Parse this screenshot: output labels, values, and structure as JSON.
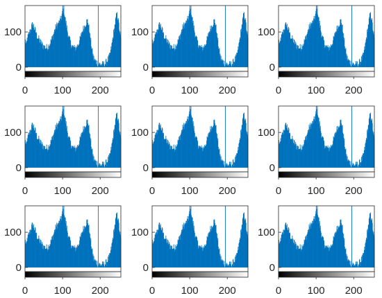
{
  "figure": {
    "grid": {
      "rows": 3,
      "cols": 3
    },
    "background": "#ffffff",
    "bar_color": "#0072BD",
    "axis_color": "#262626",
    "colorbar": "gray",
    "y_axis_range": [
      -12,
      175
    ],
    "x_axis_range": [
      0,
      255
    ],
    "y_tick_labels": [
      "0",
      "100"
    ],
    "x_tick_labels": [
      "0",
      "100",
      "200"
    ]
  },
  "chart_data": {
    "type": "bar",
    "description_of_layout": "nine identical grayscale intensity histograms",
    "xlim": [
      0,
      255
    ],
    "ylim": [
      -12,
      175
    ],
    "x_ticks": [
      0,
      100,
      200
    ],
    "y_ticks": [
      0,
      100
    ],
    "colorbar_under_axis": "black-to-white gradient",
    "bins": {
      "start": 0,
      "width": 1,
      "count": 256
    },
    "profile_points": [
      [
        0,
        75
      ],
      [
        3,
        62
      ],
      [
        5,
        80
      ],
      [
        8,
        88
      ],
      [
        10,
        95
      ],
      [
        12,
        100
      ],
      [
        15,
        110
      ],
      [
        18,
        118
      ],
      [
        20,
        122
      ],
      [
        22,
        118
      ],
      [
        25,
        108
      ],
      [
        28,
        100
      ],
      [
        30,
        92
      ],
      [
        33,
        85
      ],
      [
        36,
        80
      ],
      [
        40,
        72
      ],
      [
        43,
        68
      ],
      [
        46,
        63
      ],
      [
        50,
        58
      ],
      [
        55,
        55
      ],
      [
        60,
        57
      ],
      [
        63,
        62
      ],
      [
        67,
        70
      ],
      [
        71,
        80
      ],
      [
        75,
        92
      ],
      [
        78,
        103
      ],
      [
        81,
        112
      ],
      [
        84,
        118
      ],
      [
        87,
        122
      ],
      [
        90,
        126
      ],
      [
        93,
        132
      ],
      [
        96,
        140
      ],
      [
        99,
        152
      ],
      [
        101,
        162
      ],
      [
        103,
        165
      ],
      [
        105,
        150
      ],
      [
        107,
        135
      ],
      [
        110,
        118
      ],
      [
        113,
        100
      ],
      [
        116,
        85
      ],
      [
        120,
        72
      ],
      [
        124,
        62
      ],
      [
        128,
        56
      ],
      [
        132,
        53
      ],
      [
        136,
        56
      ],
      [
        140,
        62
      ],
      [
        144,
        72
      ],
      [
        148,
        85
      ],
      [
        152,
        100
      ],
      [
        156,
        112
      ],
      [
        160,
        120
      ],
      [
        163,
        128
      ],
      [
        166,
        132
      ],
      [
        168,
        126
      ],
      [
        170,
        112
      ],
      [
        172,
        95
      ],
      [
        174,
        80
      ],
      [
        176,
        65
      ],
      [
        178,
        50
      ],
      [
        180,
        38
      ],
      [
        182,
        28
      ],
      [
        185,
        20
      ],
      [
        190,
        14
      ],
      [
        195,
        10
      ],
      [
        200,
        8
      ],
      [
        205,
        7
      ],
      [
        210,
        8
      ],
      [
        215,
        12
      ],
      [
        220,
        20
      ],
      [
        225,
        30
      ],
      [
        230,
        55
      ],
      [
        235,
        90
      ],
      [
        240,
        125
      ],
      [
        244,
        150
      ],
      [
        248,
        140
      ],
      [
        252,
        100
      ],
      [
        255,
        80
      ]
    ],
    "spikes": [
      {
        "x": 100,
        "y": 180
      },
      {
        "x": 195,
        "y": 180
      }
    ]
  }
}
